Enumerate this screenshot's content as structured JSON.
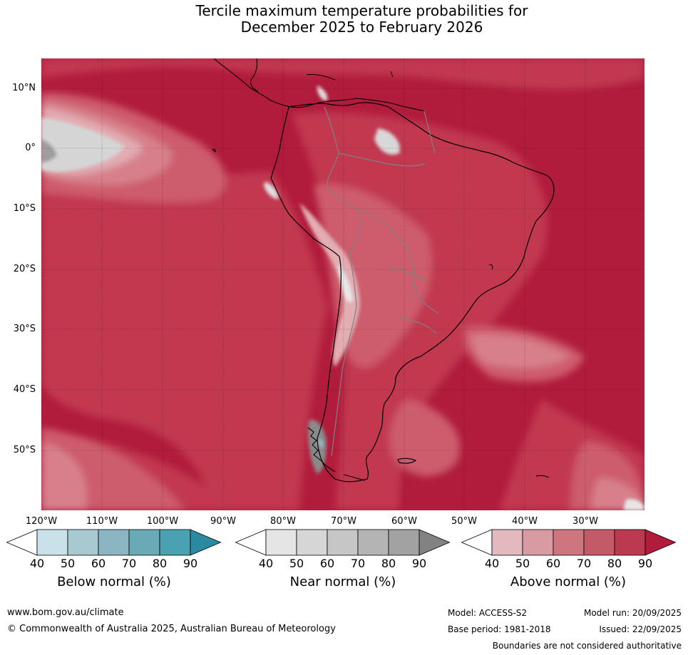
{
  "title_line1": "Tercile maximum temperature probabilities for",
  "title_line2": "December 2025 to February 2026",
  "map": {
    "lat_labels": [
      "10°N",
      "0°",
      "10°S",
      "20°S",
      "30°S",
      "40°S",
      "50°S"
    ],
    "lon_labels": [
      "120°W",
      "110°W",
      "100°W",
      "90°W",
      "80°W",
      "70°W",
      "60°W",
      "50°W",
      "40°W",
      "30°W"
    ],
    "colors": {
      "above_90": "#b11c3c",
      "above_80": "#c1374f",
      "above_70": "#cd5c6c",
      "above_60": "#d7808b",
      "above_50": "#e2adb3",
      "near_50": "#d5d5d5",
      "near_70": "#b5b5b5",
      "near_90": "#7f7f7f",
      "below_50": "#cde3ea"
    }
  },
  "colorbars": [
    {
      "label": "Below normal (%)",
      "ticks": [
        "40",
        "50",
        "60",
        "70",
        "80",
        "90"
      ],
      "colors": [
        "#ffffff",
        "#c9e1e8",
        "#a8c9d0",
        "#89b6c1",
        "#6aaab7",
        "#4aa1b0",
        "#2c8aa0"
      ]
    },
    {
      "label": "Near normal (%)",
      "ticks": [
        "40",
        "50",
        "60",
        "70",
        "80",
        "90"
      ],
      "colors": [
        "#ffffff",
        "#e5e5e5",
        "#d6d6d6",
        "#c6c6c6",
        "#b4b4b4",
        "#a2a2a2",
        "#828282"
      ]
    },
    {
      "label": "Above normal (%)",
      "ticks": [
        "40",
        "50",
        "60",
        "70",
        "80",
        "90"
      ],
      "colors": [
        "#ffffff",
        "#e1b9be",
        "#d89aa3",
        "#cd7680",
        "#c45a68",
        "#bc3a50",
        "#b01c3a"
      ]
    }
  ],
  "footer": {
    "url": "www.bom.gov.au/climate",
    "copyright": "© Commonwealth of Australia 2025, Australian Bureau of Meteorology",
    "model": "Model: ACCESS-S2",
    "base_period": "Base period: 1981-2018",
    "model_run": "Model run: 20/09/2025",
    "issued": "Issued: 22/09/2025",
    "disclaimer": "Boundaries are not considered authoritative"
  }
}
